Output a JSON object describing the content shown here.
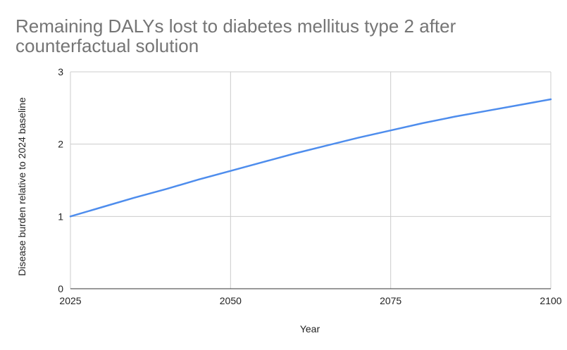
{
  "chart_data": {
    "type": "line",
    "title_line1": "Remaining DALYs lost to diabetes mellitus type 2 after",
    "title_line2": "counterfactual solution",
    "xlabel": "Year",
    "ylabel": "Disease burden relative to 2024 baseline",
    "xlim": [
      2025,
      2100
    ],
    "ylim": [
      0,
      3
    ],
    "x_ticks": [
      "2025",
      "2050",
      "2075",
      "2100"
    ],
    "y_ticks": [
      "0",
      "1",
      "2",
      "3"
    ],
    "grid": true,
    "legend": "none",
    "line_color": "#4e8ded",
    "series": [
      {
        "x": [
          2025,
          2030,
          2035,
          2040,
          2045,
          2050,
          2055,
          2060,
          2065,
          2070,
          2075,
          2080,
          2085,
          2090,
          2095,
          2100
        ],
        "y": [
          1.0,
          1.13,
          1.26,
          1.38,
          1.51,
          1.63,
          1.75,
          1.87,
          1.98,
          2.09,
          2.19,
          2.29,
          2.38,
          2.46,
          2.54,
          2.62
        ]
      }
    ]
  }
}
